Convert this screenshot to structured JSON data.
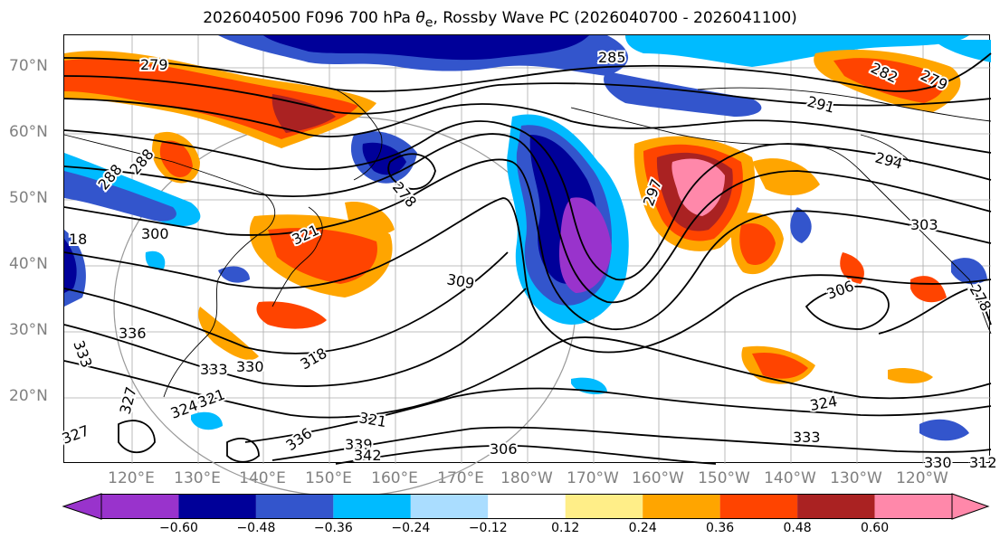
{
  "title_prefix": "2026040500 F096 700 hPa ",
  "title_var": "θ",
  "title_sub": "e",
  "title_suffix": ", Rossby Wave PC (2026040700 - 2026041100)",
  "lat_labels": [
    "70°N",
    "60°N",
    "50°N",
    "40°N",
    "30°N",
    "20°N"
  ],
  "lon_labels": [
    "120°E",
    "130°E",
    "140°E",
    "150°E",
    "160°E",
    "170°E",
    "180°W",
    "170°W",
    "160°W",
    "150°W",
    "140°W",
    "130°W",
    "120°W"
  ],
  "colorbar": {
    "colors": [
      "#9933cc",
      "#000099",
      "#3355cc",
      "#00bbff",
      "#aaddff",
      "#ffffff",
      "#ffee88",
      "#ffa500",
      "#ff4400",
      "#aa2222",
      "#ff88aa"
    ],
    "ticks": [
      "−0.60",
      "−0.48",
      "−0.36",
      "−0.24",
      "−0.12",
      "0.12",
      "0.24",
      "0.36",
      "0.48",
      "0.60"
    ]
  },
  "contour_labels": [
    "279",
    "285",
    "291",
    "294",
    "282",
    "279",
    "288",
    "288",
    "300",
    "18",
    "321",
    "278",
    "309",
    "297",
    "303",
    "306",
    "278",
    "333",
    "336",
    "333",
    "330",
    "318",
    "321",
    "327",
    "324",
    "327",
    "336",
    "339",
    "342",
    "321",
    "306",
    "324",
    "333",
    "330",
    "312"
  ],
  "colors": {
    "coast": "#000000",
    "grid": "#aaaaaa",
    "label": "#808080"
  }
}
